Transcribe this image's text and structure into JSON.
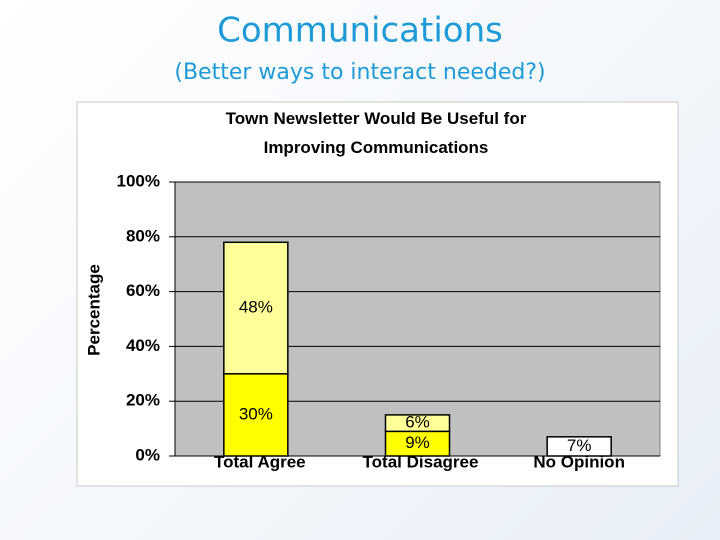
{
  "header": {
    "title": "Communications",
    "subtitle": "(Better ways to interact needed?)"
  },
  "chart_data": {
    "type": "stacked-bar",
    "title": "Town Newsletter Would Be Useful for Improving Communications",
    "ylabel": "Percentage",
    "categories": [
      "Total Agree",
      "Total Disagree",
      "No Opinion"
    ],
    "series": [
      {
        "color": "#ffff00",
        "values": [
          30,
          9,
          null
        ],
        "value_labels": [
          "30%",
          "9%",
          null
        ]
      },
      {
        "color": "#ffff99",
        "values": [
          48,
          6,
          null
        ],
        "value_labels": [
          "48%",
          "6%",
          null
        ]
      },
      {
        "color": "#ffffff",
        "values": [
          null,
          null,
          7
        ],
        "value_labels": [
          null,
          null,
          "7%"
        ]
      }
    ],
    "ylim": [
      0,
      100
    ],
    "yticks": [
      {
        "value": 0,
        "label": "0%"
      },
      {
        "value": 20,
        "label": "20%"
      },
      {
        "value": 40,
        "label": "40%"
      },
      {
        "value": 60,
        "label": "60%"
      },
      {
        "value": 80,
        "label": "80%"
      },
      {
        "value": 100,
        "label": "100%"
      }
    ],
    "grid": true,
    "plot_background": "#c0c0c0"
  }
}
